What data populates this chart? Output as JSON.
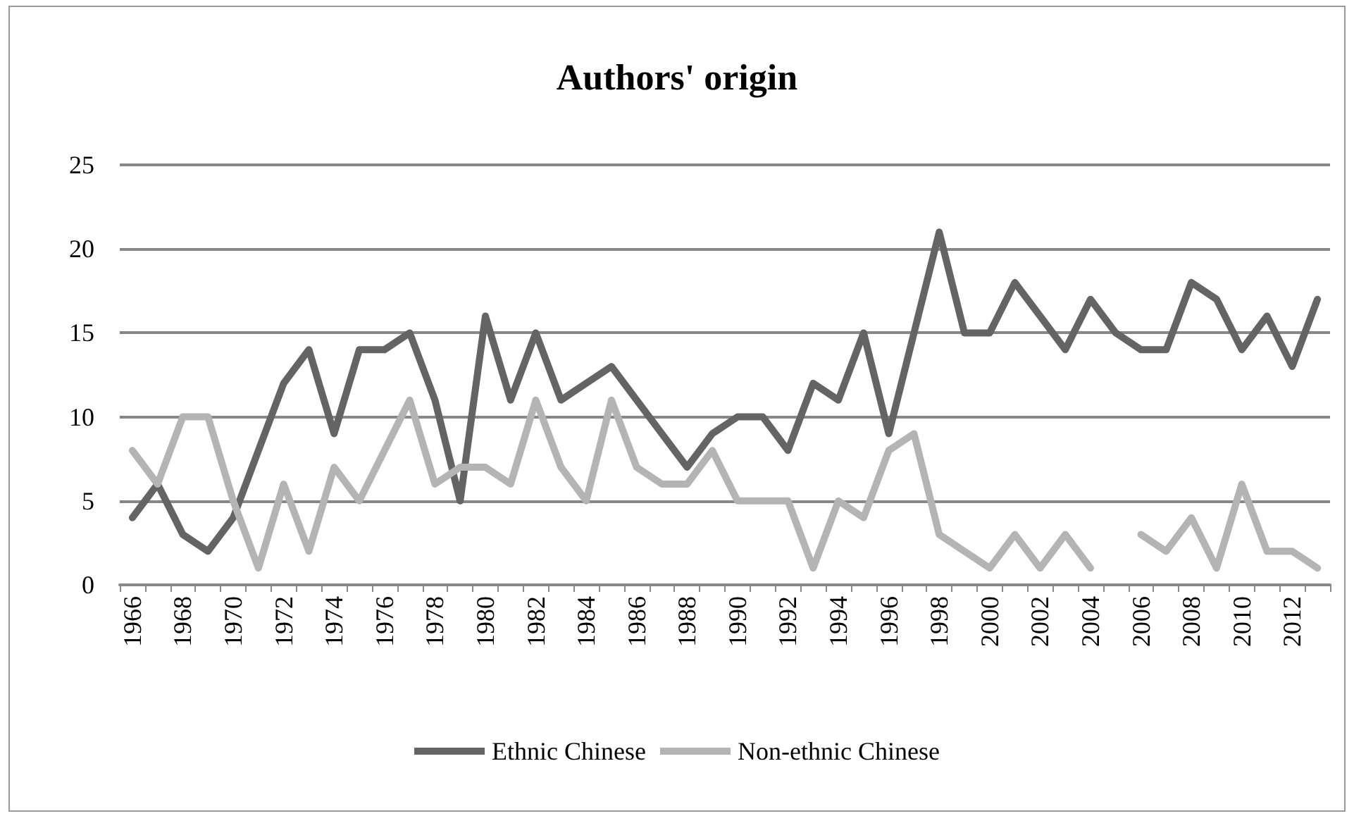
{
  "chart_data": {
    "type": "line",
    "title": "Authors' origin",
    "categories": [
      "1966",
      null,
      "1968",
      null,
      "1970",
      null,
      "1972",
      null,
      "1974",
      null,
      "1976",
      null,
      "1978",
      null,
      "1980",
      null,
      "1982",
      null,
      "1984",
      null,
      "1986",
      null,
      "1988",
      null,
      "1990",
      null,
      "1992",
      null,
      "1994",
      null,
      "1996",
      null,
      "1998",
      null,
      "2000",
      null,
      "2002",
      null,
      "2004",
      null,
      "2006",
      null,
      "2008",
      null,
      "2010",
      null,
      "2012",
      null
    ],
    "series": [
      {
        "name": "Ethnic Chinese",
        "color": "#646464",
        "values": [
          4,
          6,
          3,
          2,
          4,
          8,
          12,
          14,
          9,
          14,
          14,
          15,
          11,
          5,
          16,
          11,
          15,
          11,
          12,
          13,
          11,
          9,
          7,
          9,
          10,
          10,
          8,
          12,
          11,
          15,
          9,
          15,
          21,
          15,
          15,
          18,
          16,
          14,
          17,
          15,
          14,
          14,
          18,
          17,
          14,
          16,
          13,
          17
        ]
      },
      {
        "name": "Non-ethnic Chinese",
        "color": "#b4b4b4",
        "values": [
          8,
          6,
          10,
          10,
          5,
          1,
          6,
          2,
          7,
          5,
          8,
          11,
          6,
          7,
          7,
          6,
          11,
          7,
          5,
          11,
          7,
          6,
          6,
          8,
          5,
          5,
          5,
          1,
          5,
          4,
          8,
          9,
          3,
          2,
          1,
          3,
          1,
          3,
          1,
          null,
          3,
          2,
          4,
          1,
          6,
          2,
          2,
          1
        ]
      }
    ],
    "ylim": [
      0,
      25
    ],
    "yticks": [
      0,
      5,
      10,
      15,
      20,
      25
    ],
    "grid": "y",
    "legend": "bottom",
    "marker": "none",
    "line_style": "solid"
  }
}
